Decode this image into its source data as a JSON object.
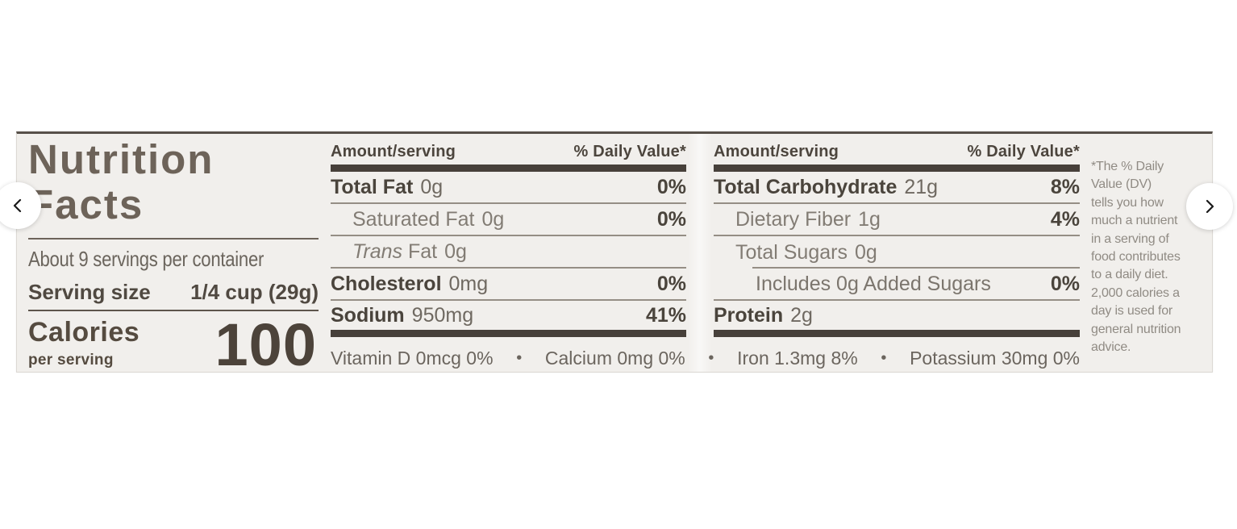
{
  "colors": {
    "page_background": "#ffffff",
    "label_background": "#f1efec",
    "label_ink_dark": "#4a443c",
    "label_ink_title": "#6d6359",
    "label_ink_muted": "#827c74",
    "divider_bar": "#47403a",
    "nav_chevron": "#1a1a1a"
  },
  "carousel": {
    "prev_label": "Previous image",
    "next_label": "Next image"
  },
  "nutrition_label": {
    "title_lines": [
      "Nutrition",
      "Facts"
    ],
    "servings_per_container": "About 9 servings per container",
    "serving_size": {
      "label": "Serving size",
      "value": "1/4 cup (29g)"
    },
    "calories": {
      "label": "Calories",
      "sublabel": "per serving",
      "value": "100"
    },
    "column_header": {
      "amount": "Amount/serving",
      "daily_value": "% Daily Value*"
    },
    "columns": [
      {
        "rows": [
          {
            "name": "Total Fat",
            "amount": "0g",
            "dv": "0%",
            "style": "major"
          },
          {
            "name": "Saturated Fat",
            "amount": "0g",
            "dv": "0%",
            "style": "sub"
          },
          {
            "name_italic": "Trans",
            "name": "Fat",
            "amount": "0g",
            "dv": "",
            "style": "sub"
          },
          {
            "name": "Cholesterol",
            "amount": "0mg",
            "dv": "0%",
            "style": "major"
          },
          {
            "name": "Sodium",
            "amount": "950mg",
            "dv": "41%",
            "style": "major",
            "end_bar": true
          }
        ]
      },
      {
        "rows": [
          {
            "name": "Total Carbohydrate",
            "amount": "21g",
            "dv": "8%",
            "style": "major"
          },
          {
            "name": "Dietary Fiber",
            "amount": "1g",
            "dv": "4%",
            "style": "sub"
          },
          {
            "name": "Total Sugars",
            "amount": "0g",
            "dv": "",
            "style": "sub",
            "rule_indent": true
          },
          {
            "name": "Includes 0g Added Sugars",
            "amount": "",
            "dv": "0%",
            "style": "sub2"
          },
          {
            "name": "Protein",
            "amount": "2g",
            "dv": "",
            "style": "major",
            "end_bar": true
          }
        ]
      }
    ],
    "micronutrients": [
      "Vitamin D 0mcg 0%",
      "Calcium 0mg 0%",
      "Iron 1.3mg 8%",
      "Potassium 30mg 0%"
    ],
    "micronutrient_separator": "•",
    "footnote_lines": [
      "*The % Daily",
      "Value (DV)",
      "tells you how",
      "much a nutrient",
      "in a serving of",
      "food contributes",
      "to a daily diet.",
      "2,000 calories a",
      "day is used for",
      "general nutrition",
      "advice."
    ]
  }
}
